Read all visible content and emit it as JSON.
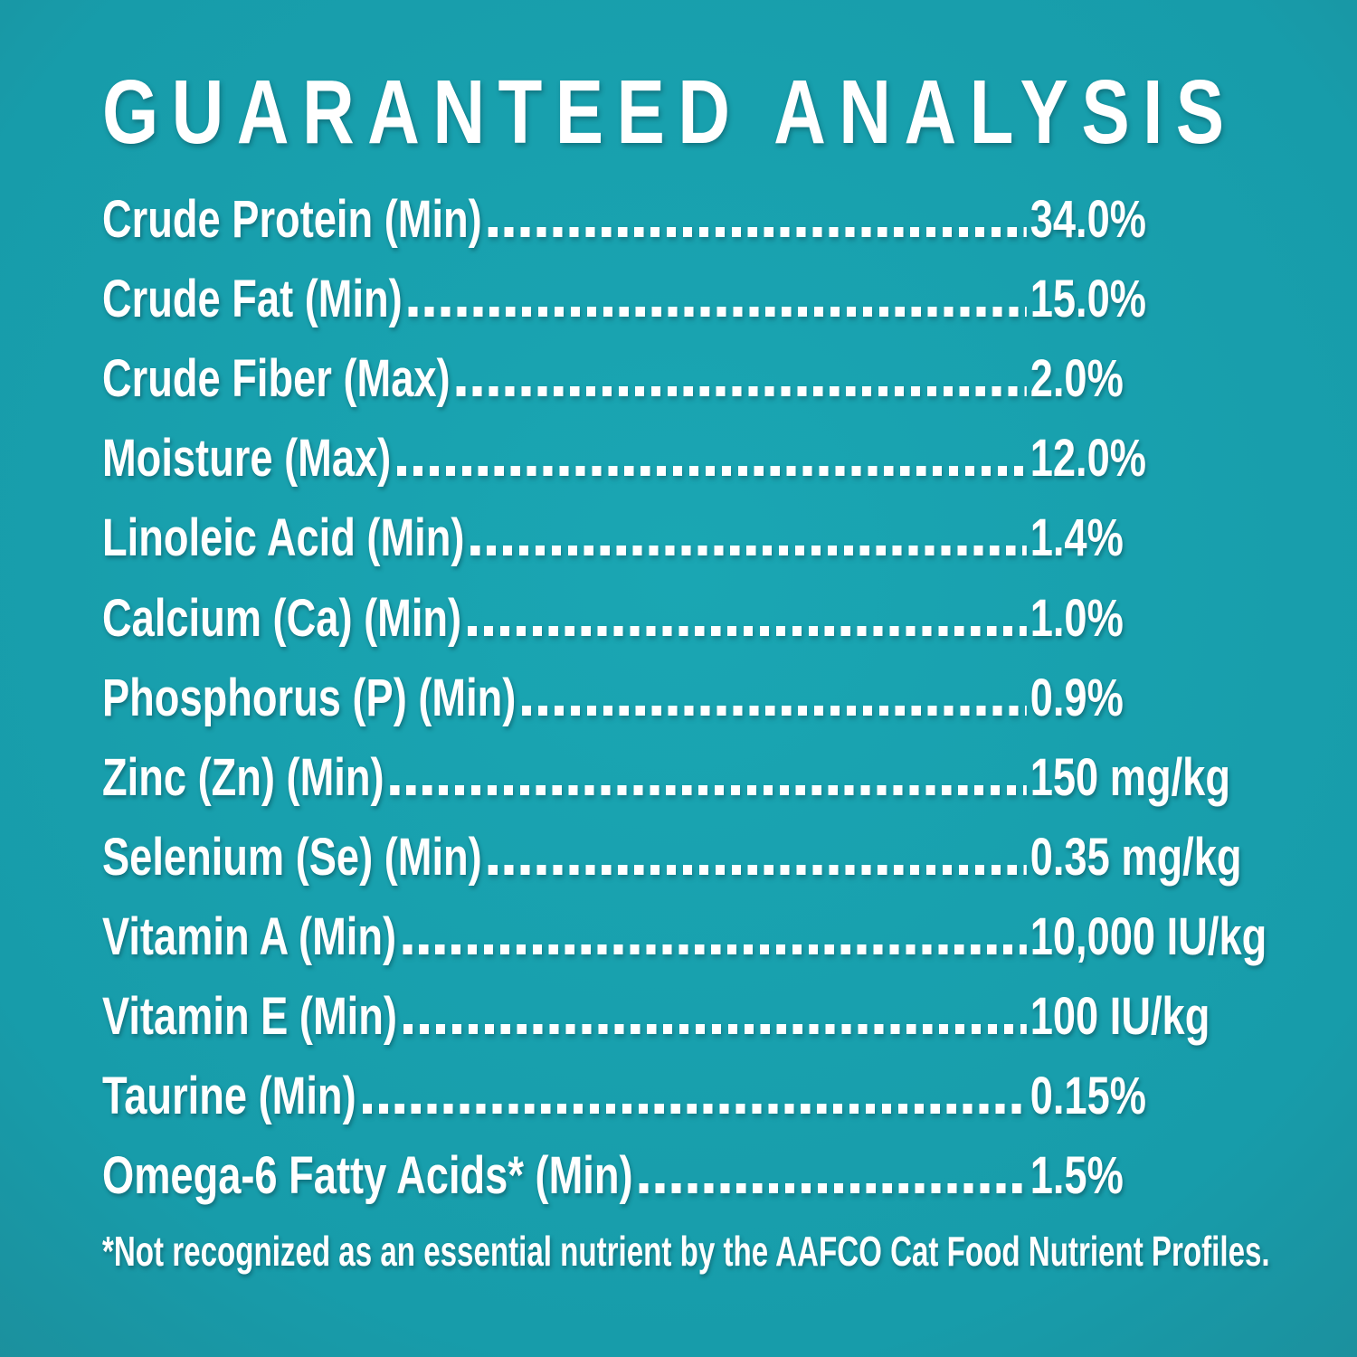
{
  "title": "GUARANTEED ANALYSIS",
  "analysis": {
    "rows": [
      {
        "label": "Crude Protein (Min)",
        "value": "34.0%"
      },
      {
        "label": "Crude Fat (Min)",
        "value": "15.0%"
      },
      {
        "label": "Crude Fiber (Max)",
        "value": "2.0%"
      },
      {
        "label": "Moisture (Max)",
        "value": "12.0%"
      },
      {
        "label": "Linoleic Acid (Min)",
        "value": "1.4%"
      },
      {
        "label": "Calcium (Ca) (Min)",
        "value": "1.0%"
      },
      {
        "label": "Phosphorus (P) (Min)",
        "value": "0.9%"
      },
      {
        "label": "Zinc (Zn) (Min)",
        "value": "150 mg/kg"
      },
      {
        "label": "Selenium (Se) (Min)",
        "value": "0.35 mg/kg"
      },
      {
        "label": "Vitamin A (Min)",
        "value": "10,000 IU/kg"
      },
      {
        "label": "Vitamin E (Min)",
        "value": "100 IU/kg"
      },
      {
        "label": "Taurine (Min)",
        "value": "0.15%"
      },
      {
        "label": "Omega-6 Fatty Acids* (Min)",
        "value": "1.5%"
      }
    ]
  },
  "footnote": "*Not recognized as an essential nutrient by the AAFCO Cat Food Nutrient Profiles.",
  "colors": {
    "background_center": "#1aa6b3",
    "background_mid": "#179caa",
    "background_edge": "#296e7a",
    "text": "#ffffff"
  }
}
